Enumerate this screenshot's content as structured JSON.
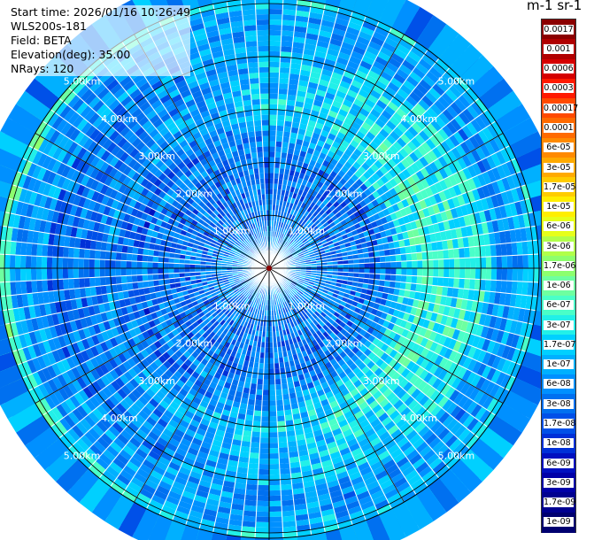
{
  "header": {
    "start_time": "Start time: 2026/01/16 10:26:49",
    "instrument": "WLS200s-181",
    "field": "Field: BETA",
    "elevation": "Elevation(deg): 35.00",
    "nrays": "NRays: 120"
  },
  "colorbar": {
    "title": "m-1 sr-1",
    "labels": [
      "0.0017",
      "0.001",
      "0.0006",
      "0.0003",
      "0.00017",
      "0.0001",
      "6e-05",
      "3e-05",
      "1.7e-05",
      "1e-05",
      "6e-06",
      "3e-06",
      "1.7e-06",
      "1e-06",
      "6e-07",
      "3e-07",
      "1.7e-07",
      "1e-07",
      "6e-08",
      "3e-08",
      "1.7e-08",
      "1e-08",
      "6e-09",
      "3e-09",
      "1.7e-09",
      "1e-09"
    ],
    "colors": [
      "#8b0000",
      "#b00000",
      "#d50000",
      "#ff1a00",
      "#ff4a00",
      "#ff6a00",
      "#ff8a00",
      "#ffaa00",
      "#ffcc00",
      "#ffee00",
      "#e6ff1a",
      "#b0ff4a",
      "#8cff6e",
      "#6effa0",
      "#4affc8",
      "#22f0e8",
      "#00d0ff",
      "#00b0ff",
      "#0090ff",
      "#0070f0",
      "#0050e8",
      "#0030d8",
      "#0010c0",
      "#0000a8",
      "#000090",
      "#000070"
    ]
  },
  "range_rings": {
    "labels": [
      "1.00km",
      "2.00km",
      "3.00km",
      "4.00km",
      "5.00km"
    ]
  },
  "chart_data": {
    "type": "heatmap",
    "subtype": "polar-ppi",
    "nrays": 120,
    "elevation_deg": 35.0,
    "range_km_max": 5.7,
    "range_rings_km": [
      1,
      2,
      3,
      4,
      5
    ],
    "spokes_every_deg": 30,
    "color_scale": "log",
    "value_range": [
      1e-09,
      0.0017
    ],
    "field": "BETA",
    "unit": "m-1 sr-1",
    "radial_profile_approx": [
      {
        "range_km": 0.5,
        "value": 6e-08
      },
      {
        "range_km": 1.0,
        "value": 4e-08
      },
      {
        "range_km": 1.5,
        "value": 3e-08
      },
      {
        "range_km": 2.0,
        "value": 3e-08
      },
      {
        "range_km": 2.5,
        "value": 6e-08
      },
      {
        "range_km": 3.0,
        "value": 1.7e-07
      },
      {
        "range_km": 3.5,
        "value": 1e-07
      },
      {
        "range_km": 4.0,
        "value": 1e-07
      },
      {
        "range_km": 4.5,
        "value": 6e-08
      },
      {
        "range_km": 5.0,
        "value": 1e-07
      },
      {
        "range_km": 5.3,
        "value": 1e-06
      },
      {
        "range_km": 5.6,
        "value": 6e-08
      }
    ]
  }
}
